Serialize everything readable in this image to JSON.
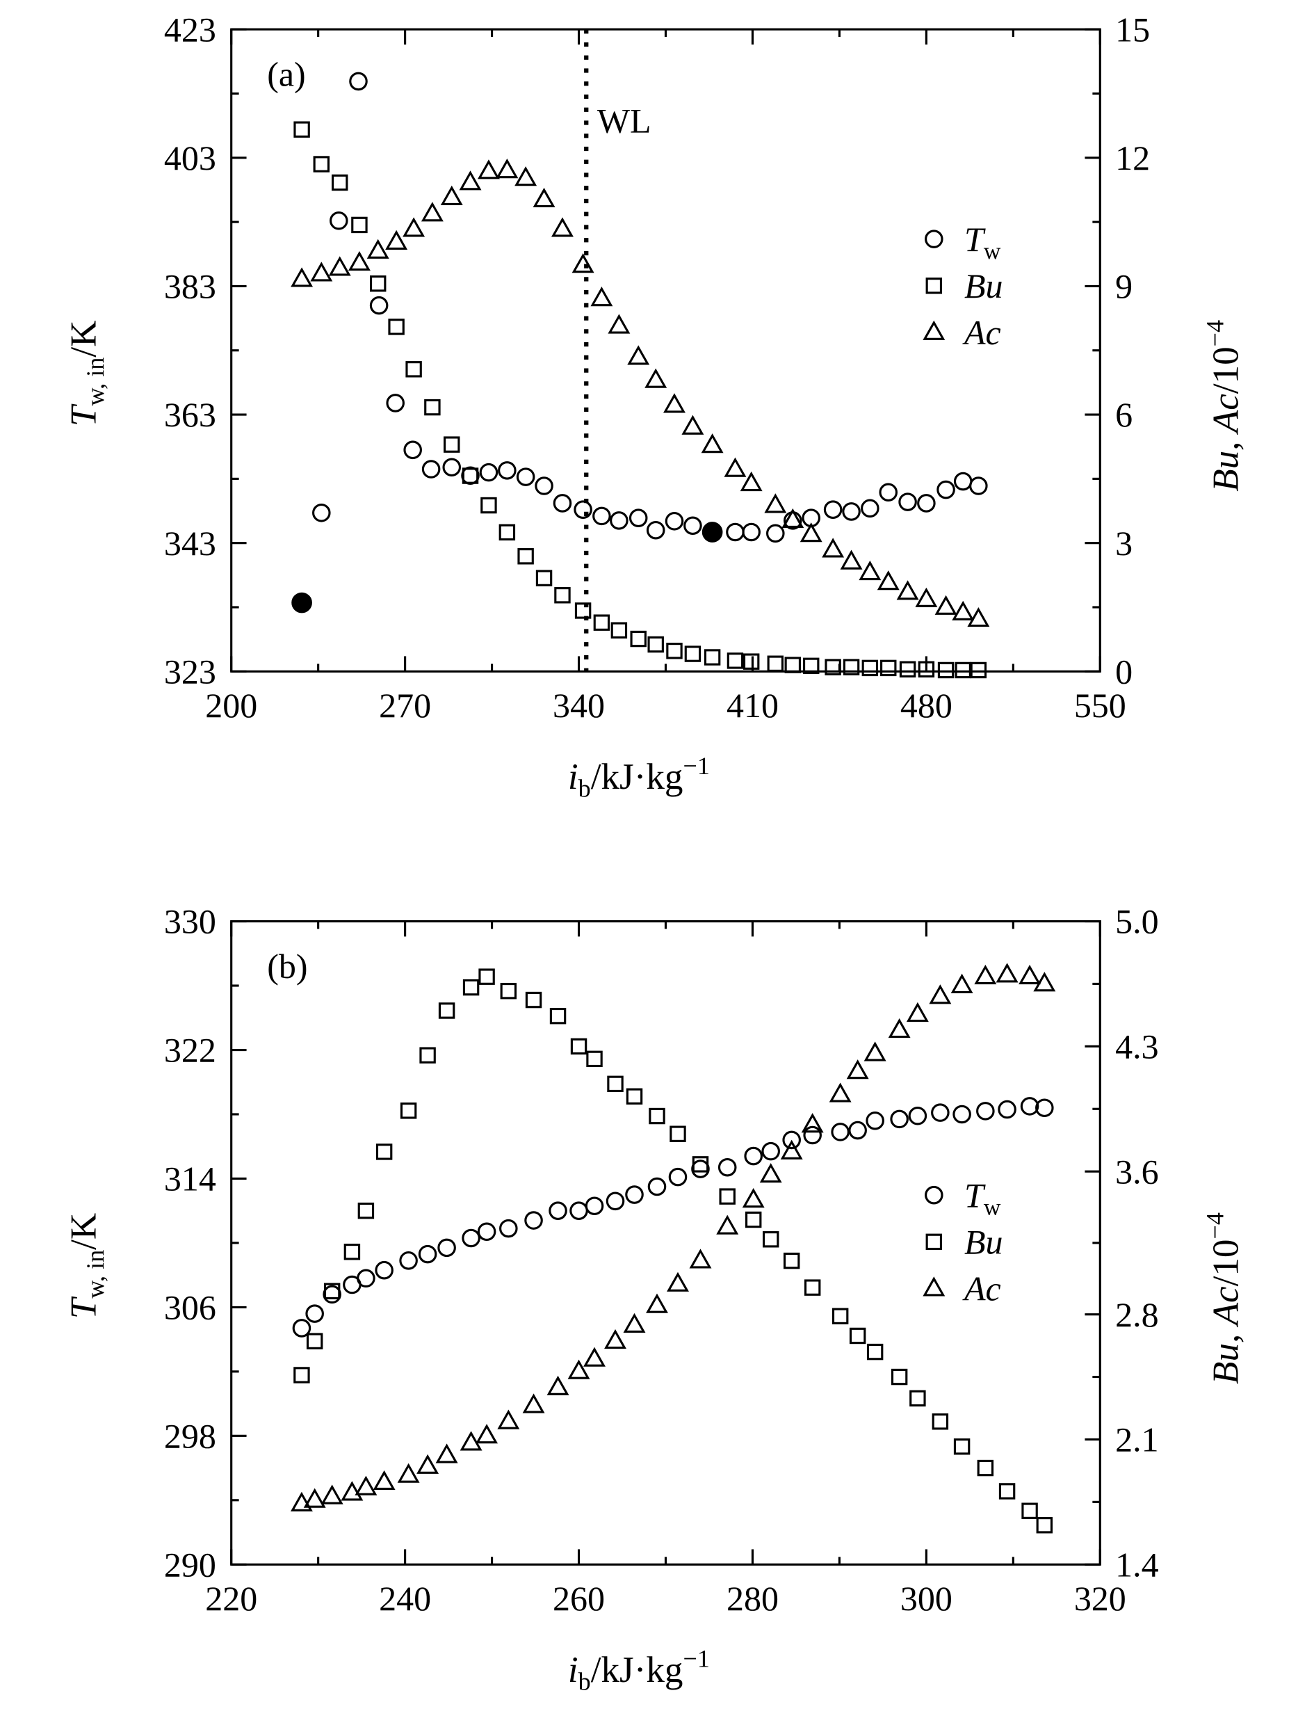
{
  "chart_data": [
    {
      "type": "scatter",
      "panel_label": "(a)",
      "xlabel": {
        "main": "i",
        "sub": "b",
        "rest": "/kJ·kg",
        "sup": "−1"
      },
      "ylabel_left": {
        "main": "T",
        "sub": "w, in",
        "rest": "/K"
      },
      "ylabel_right": {
        "main": "Bu, Ac",
        "rest": "/10",
        "sup": "−4"
      },
      "xlim": [
        200,
        550
      ],
      "ylim_left": [
        323,
        423
      ],
      "ylim_right": [
        0,
        15
      ],
      "xticks": [
        200,
        270,
        340,
        410,
        480,
        550
      ],
      "yticks_left": [
        323,
        343,
        363,
        383,
        403,
        423
      ],
      "yticks_right": [
        0,
        3,
        6,
        9,
        12,
        15
      ],
      "vline": {
        "x": 343,
        "label": "WL",
        "style": "dotted"
      },
      "legend": {
        "placement": "right",
        "entries": [
          {
            "marker": "circle",
            "main": "T",
            "sub": "w"
          },
          {
            "marker": "square",
            "main": "Bu",
            "sub": ""
          },
          {
            "marker": "triangle",
            "main": "Ac",
            "sub": ""
          }
        ]
      },
      "series": [
        {
          "name": "Tw",
          "axis": "left",
          "marker": "circle",
          "x": [
            251.2,
            243.3,
            236.3,
            259.5,
            266.1,
            273.1,
            280.5,
            288.8,
            296.3,
            303.7,
            311.1,
            318.6,
            326.0,
            333.4,
            341.7,
            349.2,
            356.2,
            364.0,
            371.0,
            378.5,
            385.9,
            403.0,
            409.5,
            419.2,
            426.2,
            433.6,
            442.4,
            449.8,
            457.3,
            464.7,
            472.5,
            480.0,
            487.9,
            494.8,
            501.0
          ],
          "y": [
            414.9,
            393.2,
            347.7,
            380.0,
            364.8,
            357.5,
            354.5,
            354.8,
            353.5,
            354.0,
            354.3,
            353.3,
            351.9,
            349.2,
            348.2,
            347.2,
            346.5,
            346.9,
            345.0,
            346.4,
            345.7,
            344.7,
            344.7,
            344.5,
            346.5,
            346.9,
            348.2,
            347.9,
            348.4,
            350.9,
            349.4,
            349.2,
            351.3,
            352.6,
            351.9
          ]
        },
        {
          "name": "Tw-filled",
          "axis": "left",
          "marker": "filled-circle",
          "x": [
            228.4,
            393.8
          ],
          "y": [
            333.7,
            344.7
          ]
        },
        {
          "name": "Bu",
          "axis": "right",
          "marker": "square",
          "x": [
            228.4,
            236.3,
            243.7,
            251.6,
            259.1,
            266.5,
            273.5,
            281.0,
            288.8,
            296.3,
            303.7,
            311.1,
            318.6,
            326.0,
            333.4,
            341.7,
            349.2,
            356.2,
            364.0,
            371.0,
            378.5,
            385.9,
            393.8,
            403.0,
            409.5,
            419.2,
            426.2,
            433.6,
            442.4,
            449.8,
            457.3,
            464.7,
            472.5,
            480.0,
            487.9,
            494.8,
            501.0
          ],
          "y": [
            12.66,
            11.85,
            11.42,
            10.43,
            9.06,
            8.05,
            7.06,
            6.17,
            5.3,
            4.57,
            3.88,
            3.25,
            2.69,
            2.18,
            1.78,
            1.42,
            1.14,
            0.96,
            0.76,
            0.63,
            0.48,
            0.41,
            0.33,
            0.25,
            0.23,
            0.18,
            0.15,
            0.13,
            0.1,
            0.1,
            0.08,
            0.08,
            0.05,
            0.05,
            0.03,
            0.03,
            0.03
          ]
        },
        {
          "name": "Ac",
          "axis": "right",
          "marker": "triangle",
          "x": [
            228.4,
            236.3,
            243.7,
            251.6,
            259.1,
            266.5,
            273.5,
            281.0,
            288.8,
            296.3,
            303.7,
            311.1,
            318.6,
            326.0,
            333.4,
            341.7,
            349.2,
            356.2,
            364.0,
            371.0,
            378.5,
            385.9,
            393.8,
            403.0,
            409.5,
            419.2,
            426.2,
            433.6,
            442.4,
            449.8,
            457.3,
            464.7,
            472.5,
            480.0,
            487.9,
            494.8,
            501.0
          ],
          "y": [
            9.16,
            9.29,
            9.42,
            9.54,
            9.82,
            10.03,
            10.33,
            10.69,
            11.07,
            11.42,
            11.68,
            11.7,
            11.52,
            11.02,
            10.33,
            9.49,
            8.71,
            8.07,
            7.34,
            6.8,
            6.22,
            5.71,
            5.28,
            4.72,
            4.39,
            3.88,
            3.53,
            3.2,
            2.84,
            2.56,
            2.31,
            2.08,
            1.85,
            1.68,
            1.5,
            1.37,
            1.22
          ]
        }
      ]
    },
    {
      "type": "scatter",
      "panel_label": "(b)",
      "xlabel": {
        "main": "i",
        "sub": "b",
        "rest": "/kJ·kg",
        "sup": "−1"
      },
      "ylabel_left": {
        "main": "T",
        "sub": "w, in",
        "rest": "/K"
      },
      "ylabel_right": {
        "main": "Bu, Ac",
        "rest": "/10",
        "sup": "−4"
      },
      "xlim": [
        220,
        320
      ],
      "ylim_left": [
        290,
        330
      ],
      "ylim_right": [
        1.4,
        5.0
      ],
      "xticks": [
        220,
        240,
        260,
        280,
        300,
        320
      ],
      "yticks_left": [
        290,
        298,
        306,
        314,
        322,
        330
      ],
      "yticks_right": [
        "1.4",
        "2.1",
        "2.8",
        "3.6",
        "4.3",
        "5.0"
      ],
      "legend": {
        "placement": "right",
        "entries": [
          {
            "marker": "circle",
            "main": "T",
            "sub": "w"
          },
          {
            "marker": "square",
            "main": "Bu",
            "sub": ""
          },
          {
            "marker": "triangle",
            "main": "Ac",
            "sub": ""
          }
        ]
      },
      "series": [
        {
          "name": "Tw",
          "axis": "left",
          "marker": "circle",
          "x": [
            228.1,
            229.6,
            231.6,
            233.9,
            235.5,
            237.6,
            240.4,
            242.6,
            244.8,
            247.6,
            249.4,
            251.9,
            254.8,
            257.6,
            260.0,
            261.8,
            264.2,
            266.4,
            269.0,
            271.4,
            274.0,
            277.1,
            280.1,
            282.1,
            284.5,
            286.9,
            290.1,
            292.1,
            294.1,
            296.9,
            299.0,
            301.6,
            304.1,
            306.8,
            309.3,
            311.9,
            313.6
          ],
          "y": [
            304.7,
            305.6,
            306.8,
            307.4,
            307.8,
            308.3,
            308.9,
            309.3,
            309.7,
            310.3,
            310.7,
            310.9,
            311.4,
            312.0,
            312.0,
            312.3,
            312.6,
            313.0,
            313.5,
            314.1,
            314.6,
            314.7,
            315.4,
            315.7,
            316.4,
            316.7,
            316.9,
            317.0,
            317.6,
            317.7,
            317.9,
            318.1,
            318.0,
            318.2,
            318.3,
            318.5,
            318.4
          ]
        },
        {
          "name": "Bu",
          "axis": "right",
          "marker": "square",
          "x": [
            228.1,
            229.6,
            231.6,
            233.9,
            235.5,
            237.6,
            240.4,
            242.6,
            244.8,
            247.6,
            249.4,
            251.9,
            254.8,
            257.6,
            260.0,
            261.8,
            264.2,
            266.4,
            269.0,
            271.4,
            274.0,
            277.1,
            280.1,
            282.1,
            284.5,
            286.9,
            290.1,
            292.1,
            294.1,
            296.9,
            299.0,
            301.6,
            304.1,
            306.8,
            309.3,
            311.9,
            313.6
          ],
          "y": [
            2.46,
            2.65,
            2.93,
            3.15,
            3.38,
            3.71,
            3.94,
            4.25,
            4.5,
            4.63,
            4.69,
            4.61,
            4.56,
            4.47,
            4.3,
            4.23,
            4.09,
            4.02,
            3.91,
            3.81,
            3.64,
            3.46,
            3.33,
            3.22,
            3.1,
            2.95,
            2.79,
            2.68,
            2.59,
            2.45,
            2.33,
            2.2,
            2.06,
            1.94,
            1.81,
            1.7,
            1.62
          ]
        },
        {
          "name": "Ac",
          "axis": "right",
          "marker": "triangle",
          "x": [
            228.1,
            229.6,
            231.6,
            233.9,
            235.5,
            237.6,
            240.4,
            242.6,
            244.8,
            247.6,
            249.4,
            251.9,
            254.8,
            257.6,
            260.0,
            261.8,
            264.2,
            266.4,
            269.0,
            271.4,
            274.0,
            277.1,
            280.1,
            282.1,
            284.5,
            286.9,
            290.1,
            292.1,
            294.1,
            296.9,
            299.0,
            301.6,
            304.1,
            306.8,
            309.3,
            311.9,
            313.6
          ],
          "y": [
            1.74,
            1.76,
            1.78,
            1.8,
            1.83,
            1.86,
            1.9,
            1.95,
            2.01,
            2.08,
            2.12,
            2.2,
            2.29,
            2.39,
            2.48,
            2.55,
            2.65,
            2.74,
            2.85,
            2.97,
            3.1,
            3.29,
            3.44,
            3.58,
            3.71,
            3.86,
            4.03,
            4.16,
            4.26,
            4.39,
            4.48,
            4.58,
            4.64,
            4.69,
            4.7,
            4.69,
            4.65
          ]
        }
      ]
    }
  ]
}
